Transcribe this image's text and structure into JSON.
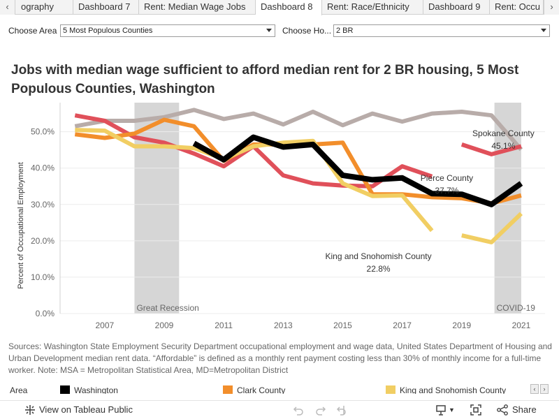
{
  "tabs": {
    "items": [
      "ography",
      "Dashboard 7",
      "Rent: Median Wage Jobs",
      "Dashboard 8",
      "Rent: Race/Ethnicity",
      "Dashboard 9",
      "Rent: Occu"
    ],
    "active_index": 3,
    "prev_icon": "chevron-left-icon",
    "next_icon": "chevron-right-icon"
  },
  "filters": {
    "area_label": "Choose Area",
    "area_value": "5 Most Populous Counties",
    "housing_label": "Choose Ho...",
    "housing_value": "2 BR"
  },
  "title": "Jobs with median wage sufficient to afford median rent for 2 BR housing, 5 Most Populous Counties, Washington",
  "chart_data": {
    "type": "line",
    "ylabel": "Percent of Occupational Employment",
    "xlabel": "",
    "x_ticks": [
      "2007",
      "2009",
      "2011",
      "2013",
      "2015",
      "2017",
      "2019",
      "2021"
    ],
    "y_ticks": [
      "0.0%",
      "10.0%",
      "20.0%",
      "30.0%",
      "40.0%",
      "50.0%"
    ],
    "ylim": [
      0,
      58
    ],
    "xlim": [
      2005.5,
      2021.8
    ],
    "grid": true,
    "shaded_periods": [
      {
        "label": "Great Recession",
        "start": 2008,
        "end": 2009.5,
        "color": "#d6d6d6"
      },
      {
        "label": "COVID-19",
        "start": 2020.1,
        "end": 2021,
        "color": "#d6d6d6"
      }
    ],
    "series": [
      {
        "name": "Spokane County",
        "color": "#b8aca9",
        "width": 6,
        "points": [
          [
            2006,
            51.5
          ],
          [
            2007,
            53
          ],
          [
            2008,
            53
          ],
          [
            2009,
            54
          ],
          [
            2010,
            56
          ],
          [
            2011,
            53.5
          ],
          [
            2012,
            55
          ],
          [
            2013,
            52
          ],
          [
            2014,
            55.5
          ],
          [
            2015,
            51.8
          ],
          [
            2016,
            55
          ],
          [
            2017,
            52.8
          ],
          [
            2018,
            55
          ],
          [
            2019,
            55.5
          ],
          [
            2020,
            54.5
          ],
          [
            2021,
            45.1
          ]
        ]
      },
      {
        "name": "Pierce County",
        "color": "#e0505a",
        "width": 6,
        "points": [
          [
            2006,
            54.5
          ],
          [
            2007,
            53
          ],
          [
            2008,
            48.5
          ],
          [
            2009,
            47
          ],
          [
            2010,
            44
          ],
          [
            2011,
            40.5
          ],
          [
            2012,
            46
          ],
          [
            2013,
            38
          ],
          [
            2014,
            35.8
          ],
          [
            2015,
            35.2
          ],
          [
            2016,
            35
          ],
          [
            2017,
            40.5
          ],
          [
            2018,
            37.7
          ],
          [
            null,
            null
          ],
          [
            2019,
            46.5
          ],
          [
            2020,
            43.8
          ],
          [
            2021,
            46
          ]
        ]
      },
      {
        "name": "Clark County",
        "color": "#f28e2b",
        "width": 6,
        "points": [
          [
            2006,
            49.3
          ],
          [
            2007,
            48.3
          ],
          [
            2008,
            49.5
          ],
          [
            2009,
            53.3
          ],
          [
            2010,
            51.5
          ],
          [
            2011,
            42
          ],
          [
            2012,
            46.5
          ],
          [
            2013,
            46.5
          ],
          [
            2014,
            46.5
          ],
          [
            2015,
            47
          ],
          [
            2016,
            32.8
          ],
          [
            2017,
            32.8
          ],
          [
            2018,
            32
          ],
          [
            2019,
            31.7
          ],
          [
            2020,
            30.3
          ],
          [
            2021,
            32.5
          ]
        ]
      },
      {
        "name": "King and Snohomish County",
        "color": "#f1ce63",
        "width": 6,
        "points": [
          [
            2006,
            50.5
          ],
          [
            2007,
            50.3
          ],
          [
            2008,
            46
          ],
          [
            2009,
            46
          ],
          [
            2010,
            45.5
          ],
          [
            2011,
            42.5
          ],
          [
            2012,
            46
          ],
          [
            2013,
            47
          ],
          [
            2014,
            47.5
          ],
          [
            2015,
            35.8
          ],
          [
            2016,
            32.3
          ],
          [
            2017,
            32.5
          ],
          [
            2018,
            22.8
          ],
          [
            null,
            null
          ],
          [
            2019,
            21.5
          ],
          [
            2020,
            19.6
          ],
          [
            2021,
            27.5
          ]
        ]
      },
      {
        "name": "Washington",
        "color": "#000000",
        "width": 8,
        "points": [
          [
            2010,
            46.8
          ],
          [
            2011,
            42.3
          ],
          [
            2012,
            48.5
          ],
          [
            2013,
            45.8
          ],
          [
            2014,
            46.5
          ],
          [
            2015,
            38
          ],
          [
            2016,
            36.8
          ],
          [
            2017,
            37.3
          ],
          [
            2018,
            33
          ],
          [
            2019,
            32.8
          ],
          [
            2020,
            30
          ],
          [
            2021,
            35.8
          ]
        ]
      }
    ],
    "annotations": [
      {
        "x": 2020.4,
        "y": 48.8,
        "lines": [
          "Spokane County",
          "45.1%"
        ]
      },
      {
        "x": 2018.5,
        "y": 36.5,
        "lines": [
          "Pierce County",
          "37.7%"
        ]
      },
      {
        "x": 2016.2,
        "y": 15.0,
        "lines": [
          "King and Snohomish County",
          "22.8%"
        ]
      }
    ]
  },
  "sources": "Sources: Washington State Employment Security Department occupational employment and wage data, United States Department of Housing and Urban Development median rent data. “Affordable” is defined as a monthly rent payment costing less than 30% of monthly income for a full-time worker. Note: MSA = Metropolitan Statistical Area, MD=Metropolitan District",
  "legend": {
    "title": "Area",
    "items": [
      {
        "label": "Washington",
        "color": "#000000"
      },
      {
        "label": "Clark County",
        "color": "#f28e2b"
      },
      {
        "label": "King and Snohomish County",
        "color": "#f1ce63"
      }
    ]
  },
  "toolbar": {
    "view_label": "View on Tableau Public",
    "share_label": "Share",
    "icons": [
      "tableau-logo-icon",
      "undo-icon",
      "redo-icon",
      "revert-icon",
      "download-icon",
      "fullscreen-icon",
      "share-icon"
    ]
  }
}
